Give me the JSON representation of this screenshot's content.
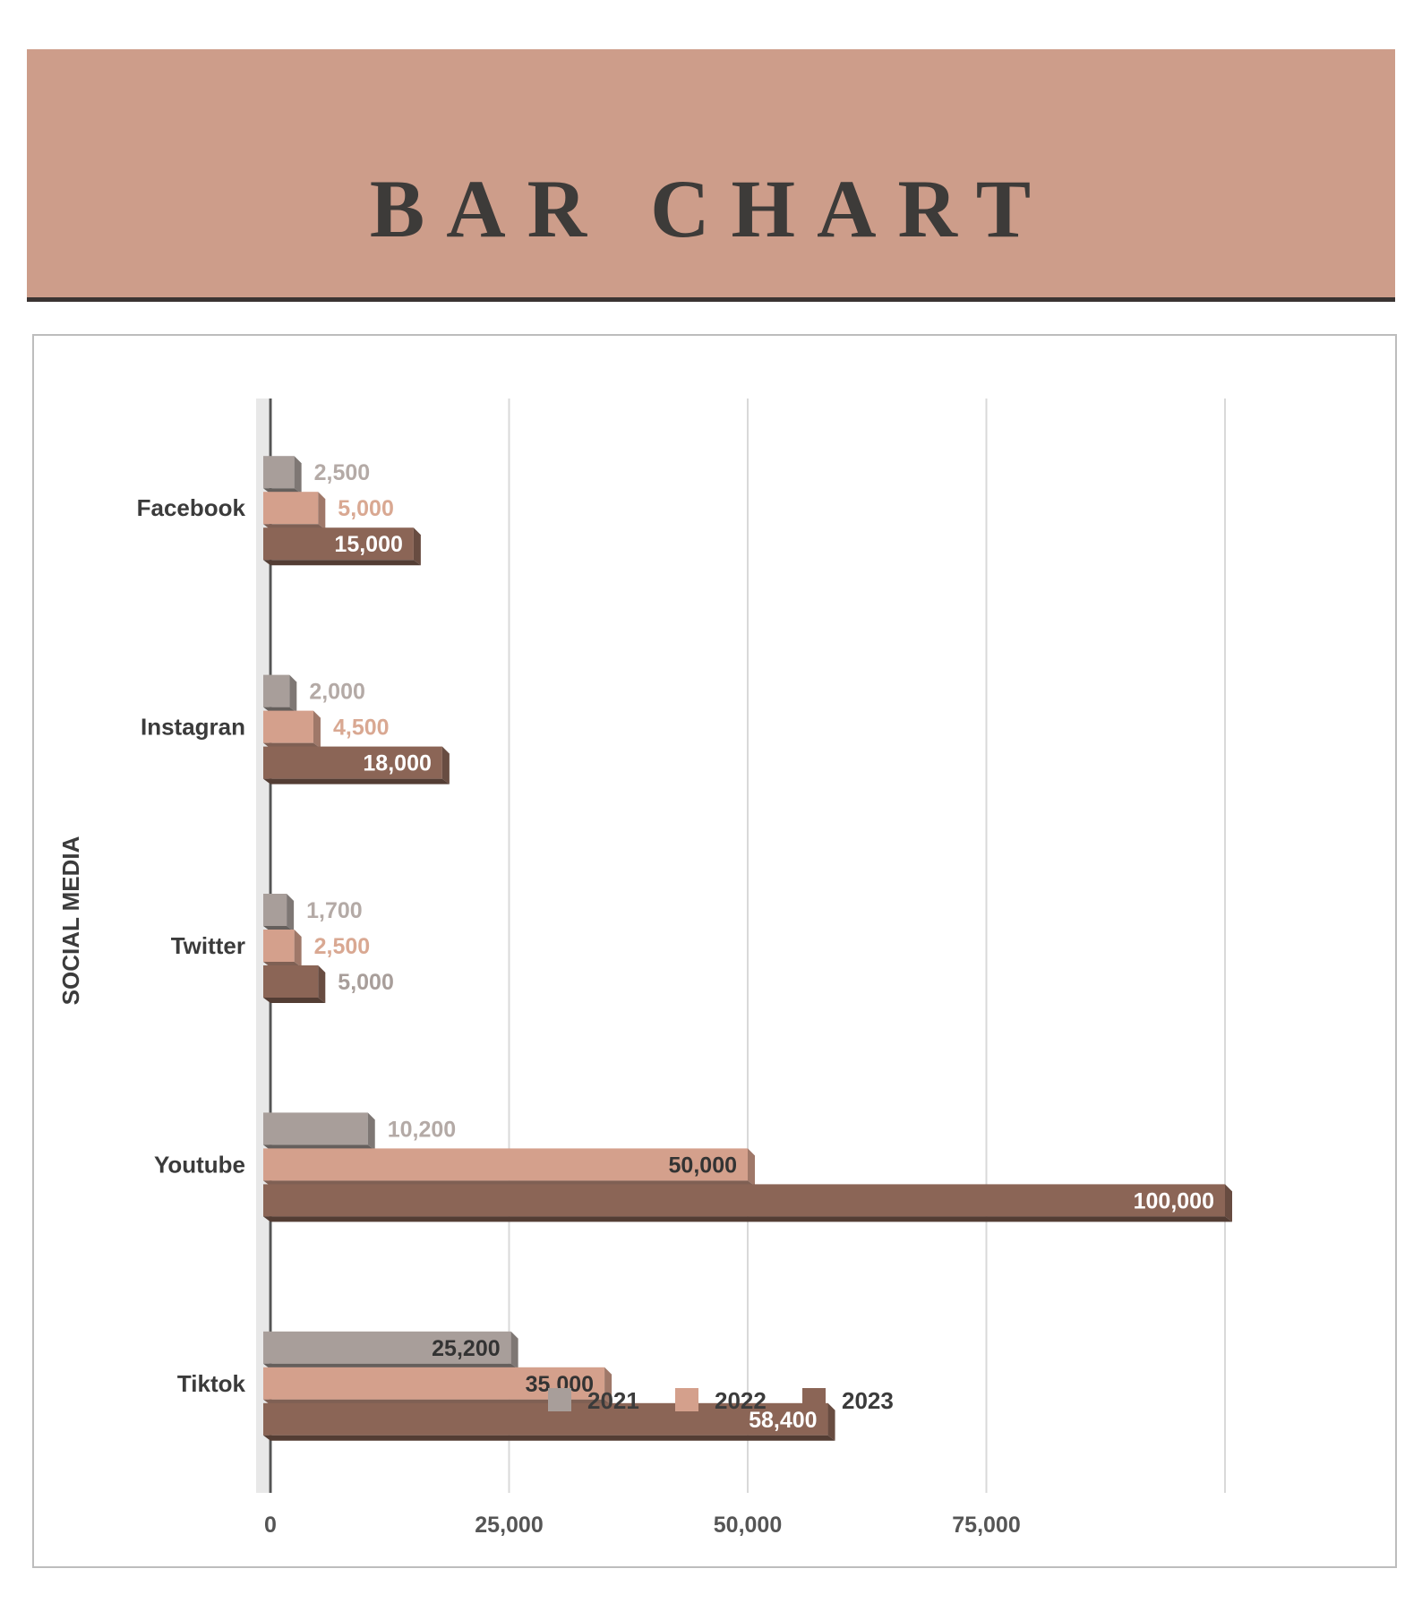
{
  "header": {
    "title": "BAR CHART"
  },
  "chart_data": {
    "type": "bar",
    "orientation": "horizontal",
    "categories": [
      "Facebook",
      "Instagran",
      "Twitter",
      "Youtube",
      "Tiktok"
    ],
    "series": [
      {
        "name": "2021",
        "values": [
          2500,
          2000,
          1700,
          10200,
          25200
        ],
        "labels": [
          "2,500",
          "2,000",
          "1,700",
          "10,200",
          "25,200"
        ]
      },
      {
        "name": "2022",
        "values": [
          5000,
          4500,
          2500,
          50000,
          35000
        ],
        "labels": [
          "5,000",
          "4,500",
          "2,500",
          "50,000",
          "35,000"
        ]
      },
      {
        "name": "2023",
        "values": [
          15000,
          18000,
          5000,
          100000,
          58400
        ],
        "labels": [
          "15,000",
          "18,000",
          "5,000",
          "100,000",
          "58,400"
        ]
      }
    ],
    "ylabel": "SOCIAL MEDIA",
    "xlabel": "",
    "xlim": [
      0,
      100000
    ],
    "xticks": [
      0,
      25000,
      50000,
      75000
    ],
    "xtick_labels": [
      "0",
      "25,000",
      "50,000",
      "75,000"
    ],
    "grid": true,
    "legend": "bottom",
    "colors": {
      "2021": "#a89e9a",
      "2022": "#d4a08c",
      "2023": "#8b6556"
    },
    "style": "3d"
  }
}
